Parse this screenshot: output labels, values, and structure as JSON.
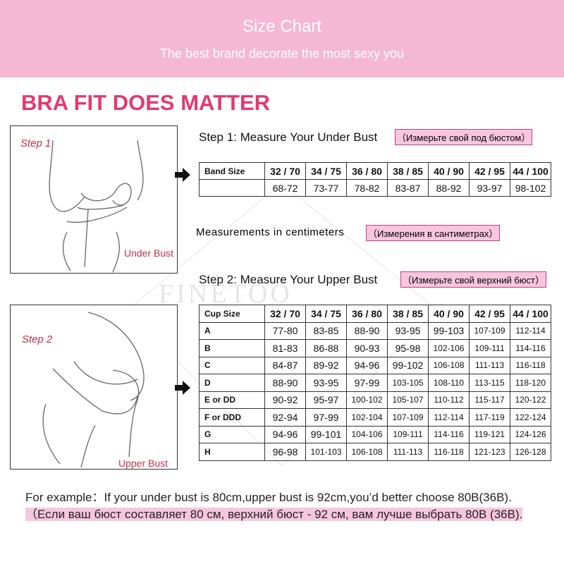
{
  "header": {
    "title": "Size Chart",
    "subtitle": "The best brand decorate the most sexy you"
  },
  "heading": "BRA FIT DOES MATTER",
  "watermark": "FINETOO",
  "step1": {
    "image_label": "Step 1",
    "image_caption": "Under Bust",
    "title": "Step 1:",
    "text": "Measure Your Under Bust",
    "translation": "（Измерьте свой под бюстом）"
  },
  "band_table": {
    "header": [
      "Band Size",
      "32 / 70",
      "34 / 75",
      "36 / 80",
      "38 / 85",
      "40 / 90",
      "42 / 95",
      "44 / 100"
    ],
    "values": [
      "68-72",
      "73-77",
      "78-82",
      "83-87",
      "88-92",
      "93-97",
      "98-102"
    ]
  },
  "note": {
    "text": "Measurements in centimeters",
    "translation": "（Измерения в сантиметрах）"
  },
  "step2": {
    "image_label": "Step 2",
    "image_caption": "Upper Bust",
    "title": "Step 2:",
    "text": "Measure Your Upper Bust",
    "translation": "（Измерьте свой верхний бюст）"
  },
  "cup_table": {
    "header": [
      "Cup Size",
      "32 / 70",
      "34 / 75",
      "36 / 80",
      "38 / 85",
      "40 / 90",
      "42 / 95",
      "44 / 100"
    ],
    "rows": [
      [
        "A",
        "77-80",
        "83-85",
        "88-90",
        "93-95",
        "99-103",
        "107-109",
        "112-114"
      ],
      [
        "B",
        "81-83",
        "86-88",
        "90-93",
        "95-98",
        "102-106",
        "109-111",
        "114-116"
      ],
      [
        "C",
        "84-87",
        "89-92",
        "94-96",
        "99-102",
        "106-108",
        "111-113",
        "116-118"
      ],
      [
        "D",
        "88-90",
        "93-95",
        "97-99",
        "103-105",
        "108-110",
        "113-115",
        "118-120"
      ],
      [
        "E  or  DD",
        "90-92",
        "95-97",
        "100-102",
        "105-107",
        "110-112",
        "115-117",
        "120-122"
      ],
      [
        "F  or  DDD",
        "92-94",
        "97-99",
        "102-104",
        "107-109",
        "112-114",
        "117-119",
        "122-124"
      ],
      [
        "G",
        "94-96",
        "99-101",
        "104-106",
        "109-111",
        "114-116",
        "119-121",
        "124-126"
      ],
      [
        "H",
        "96-98",
        "101-103",
        "106-108",
        "111-113",
        "116-118",
        "121-123",
        "126-128"
      ]
    ]
  },
  "example": {
    "text": "For example：If your under bust is 80cm,upper bust is 92cm,you’d better choose 80B(36B).",
    "translation": "（Если ваш бюст составляет 80 см, верхний бюст - 92 см, вам лучше выбрать 80B (36B)."
  }
}
